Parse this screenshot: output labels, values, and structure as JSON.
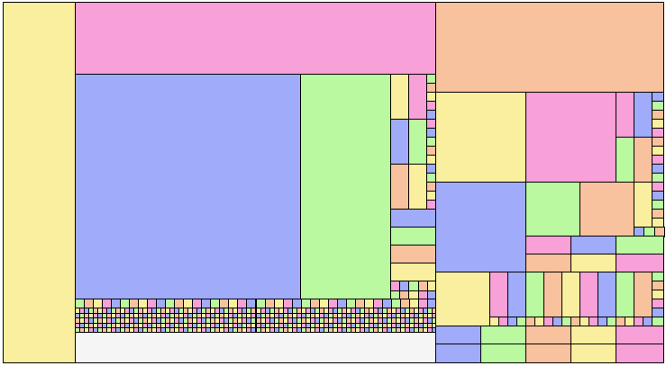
{
  "palette": {
    "yellow": "#f9ef9e",
    "pink": "#f8a0d8",
    "blue": "#a0acfa",
    "green": "#baf9a0",
    "orange": "#f9c29e",
    "empty": "#f5f5f5",
    "border": "#000000",
    "background": "#ffffff"
  },
  "chart_data": {
    "type": "treemap",
    "title": "",
    "labels_shown": false,
    "color_cycle": [
      "yellow",
      "pink",
      "blue",
      "green",
      "orange"
    ]
  }
}
